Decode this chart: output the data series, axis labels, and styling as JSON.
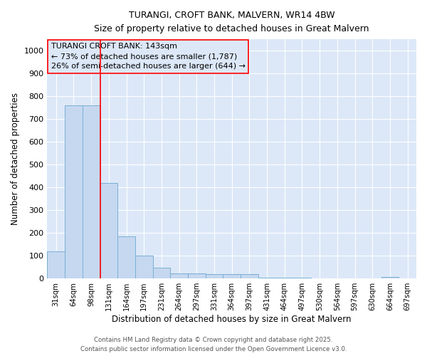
{
  "title1": "TURANGI, CROFT BANK, MALVERN, WR14 4BW",
  "title2": "Size of property relative to detached houses in Great Malvern",
  "xlabel": "Distribution of detached houses by size in Great Malvern",
  "ylabel": "Number of detached properties",
  "categories": [
    "31sqm",
    "64sqm",
    "98sqm",
    "131sqm",
    "164sqm",
    "197sqm",
    "231sqm",
    "264sqm",
    "297sqm",
    "331sqm",
    "364sqm",
    "397sqm",
    "431sqm",
    "464sqm",
    "497sqm",
    "530sqm",
    "564sqm",
    "597sqm",
    "630sqm",
    "664sqm",
    "697sqm"
  ],
  "values": [
    118,
    760,
    760,
    420,
    185,
    100,
    48,
    22,
    22,
    18,
    18,
    18,
    5,
    5,
    5,
    0,
    0,
    0,
    0,
    8,
    0
  ],
  "bar_color": "#c5d8f0",
  "bar_edge_color": "#7aafd4",
  "red_line_index": 3,
  "annotation_line1": "TURANGI CROFT BANK: 143sqm",
  "annotation_line2": "← 73% of detached houses are smaller (1,787)",
  "annotation_line3": "26% of semi-detached houses are larger (644) →",
  "ylim": [
    0,
    1050
  ],
  "yticks": [
    0,
    100,
    200,
    300,
    400,
    500,
    600,
    700,
    800,
    900,
    1000
  ],
  "footer1": "Contains HM Land Registry data © Crown copyright and database right 2025.",
  "footer2": "Contains public sector information licensed under the Open Government Licence v3.0.",
  "plot_bg_color": "#dce8f8",
  "fig_bg_color": "#ffffff",
  "grid_color": "#ffffff"
}
